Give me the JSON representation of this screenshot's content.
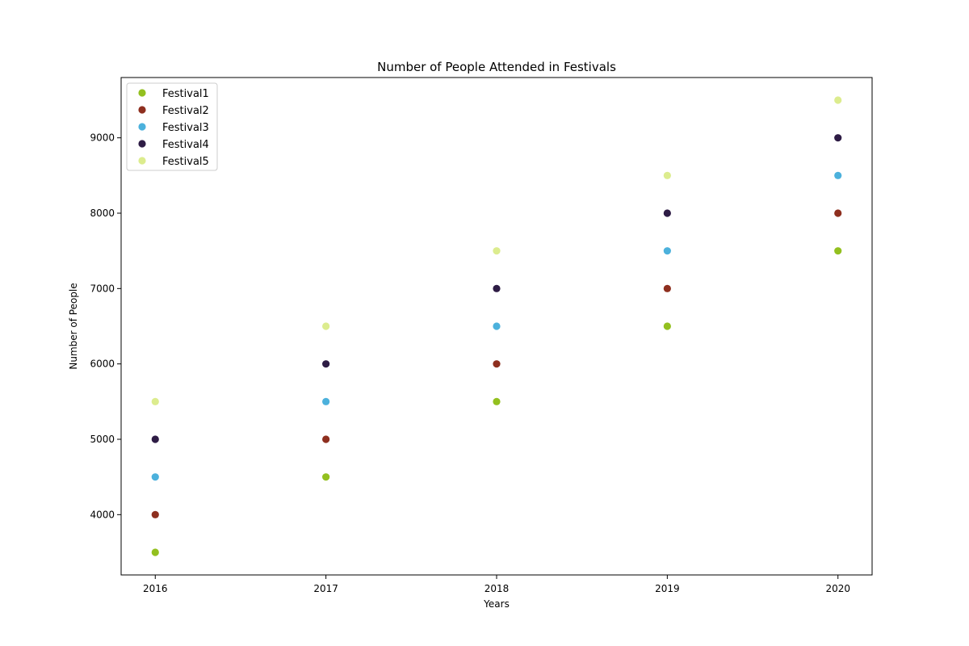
{
  "chart_data": {
    "type": "scatter",
    "title": "Number of People Attended in Festivals",
    "xlabel": "Years",
    "ylabel": "Number of People",
    "categories": [
      "2016",
      "2017",
      "2018",
      "2019",
      "2020"
    ],
    "x": [
      2016,
      2017,
      2018,
      2019,
      2020
    ],
    "xlim": [
      2015.8,
      2020.2
    ],
    "ylim": [
      3200,
      9800
    ],
    "yticks": [
      4000,
      5000,
      6000,
      7000,
      8000,
      9000
    ],
    "grid": false,
    "legend_position": "top-left",
    "series": [
      {
        "name": "Festival1",
        "color": "#93c01f",
        "values": [
          3500,
          4500,
          5500,
          6500,
          7500
        ]
      },
      {
        "name": "Festival2",
        "color": "#8e2f1f",
        "values": [
          4000,
          5000,
          6000,
          7000,
          8000
        ]
      },
      {
        "name": "Festival3",
        "color": "#4cb1dc",
        "values": [
          4500,
          5500,
          6500,
          7500,
          8500
        ]
      },
      {
        "name": "Festival4",
        "color": "#2e1c45",
        "values": [
          5000,
          6000,
          7000,
          8000,
          9000
        ]
      },
      {
        "name": "Festival5",
        "color": "#dcec8e",
        "values": [
          5500,
          6500,
          7500,
          8500,
          9500
        ]
      }
    ]
  }
}
